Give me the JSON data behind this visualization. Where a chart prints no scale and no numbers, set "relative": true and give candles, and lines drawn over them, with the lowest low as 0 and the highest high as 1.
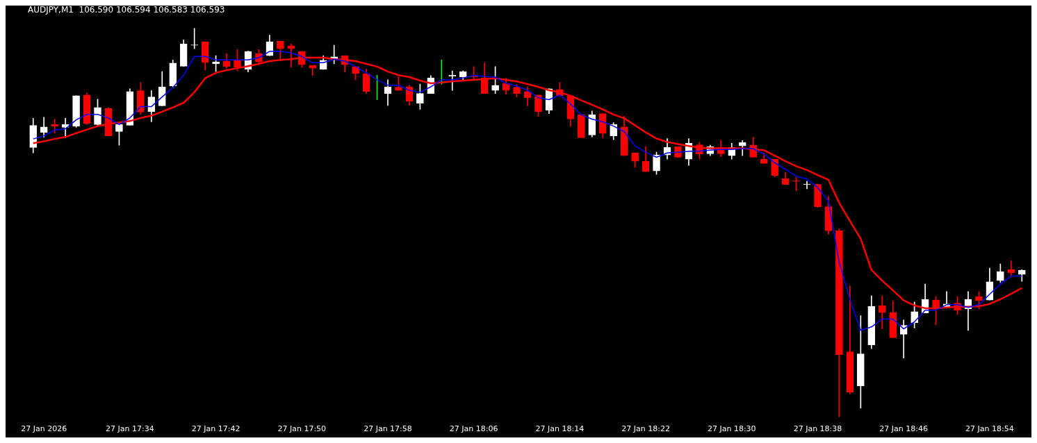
{
  "chart_data": {
    "type": "candlestick",
    "title": "AUDJPY,M1  106.590 106.594 106.583 106.593",
    "relative": true,
    "tick_labels": "x",
    "categories": [
      null,
      "27 Jan 2026",
      null,
      null,
      null,
      null,
      null,
      null,
      null,
      "27 Jan 17:34",
      null,
      null,
      null,
      null,
      null,
      null,
      null,
      "27 Jan 17:42",
      null,
      null,
      null,
      null,
      null,
      null,
      null,
      "27 Jan 17:50",
      null,
      null,
      null,
      null,
      null,
      null,
      null,
      "27 Jan 17:58",
      null,
      null,
      null,
      null,
      null,
      null,
      null,
      "27 Jan 18:06",
      null,
      null,
      null,
      null,
      null,
      null,
      null,
      "27 Jan 18:14",
      null,
      null,
      null,
      null,
      null,
      null,
      null,
      "27 Jan 18:22",
      null,
      null,
      null,
      null,
      null,
      null,
      null,
      "27 Jan 18:30",
      null,
      null,
      null,
      null,
      null,
      null,
      null,
      "27 Jan 18:38",
      null,
      null,
      null,
      null,
      null,
      null,
      null,
      "27 Jan 18:46",
      null,
      null,
      null,
      null,
      null,
      null,
      null,
      "27 Jan 18:54",
      null,
      null,
      null
    ],
    "ohlc": [
      [
        0.693,
        0.768,
        0.679,
        0.75
      ],
      [
        0.732,
        0.771,
        0.72,
        0.746
      ],
      [
        0.752,
        0.766,
        0.73,
        0.748
      ],
      [
        0.745,
        0.768,
        0.718,
        0.752
      ],
      [
        0.748,
        0.826,
        0.745,
        0.826
      ],
      [
        0.828,
        0.833,
        0.752,
        0.755
      ],
      [
        0.752,
        0.817,
        0.75,
        0.796
      ],
      [
        0.793,
        0.796,
        0.723,
        0.723
      ],
      [
        0.734,
        0.755,
        0.699,
        0.752
      ],
      [
        0.75,
        0.844,
        0.75,
        0.837
      ],
      [
        0.839,
        0.86,
        0.778,
        0.784
      ],
      [
        0.785,
        0.839,
        0.759,
        0.823
      ],
      [
        0.8,
        0.888,
        0.8,
        0.849
      ],
      [
        0.851,
        0.918,
        0.847,
        0.91
      ],
      [
        0.902,
        0.97,
        0.902,
        0.959
      ],
      [
        0.956,
        1,
        0.947,
        0.957
      ],
      [
        0.965,
        0.965,
        0.892,
        0.911
      ],
      [
        0.908,
        0.929,
        0.888,
        0.913
      ],
      [
        0.915,
        0.934,
        0.897,
        0.901
      ],
      [
        0.917,
        0.945,
        0.89,
        0.899
      ],
      [
        0.894,
        0.941,
        0.887,
        0.94
      ],
      [
        0.934,
        0.945,
        0.906,
        0.913
      ],
      [
        0.929,
        0.982,
        0.929,
        0.965
      ],
      [
        0.966,
        0.966,
        0.915,
        0.947
      ],
      [
        0.954,
        0.959,
        0.899,
        0.947
      ],
      [
        0.94,
        0.94,
        0.899,
        0.906
      ],
      [
        0.904,
        0.904,
        0.878,
        0.897
      ],
      [
        0.894,
        0.929,
        0.894,
        0.917
      ],
      [
        0.92,
        0.956,
        0.908,
        0.926
      ],
      [
        0.929,
        0.929,
        0.887,
        0.906
      ],
      [
        0.901,
        0.901,
        0.867,
        0.883
      ],
      [
        0.883,
        0.895,
        0.832,
        0.837
      ],
      [
        0.837,
        0.879,
        0.816,
        0.837
      ],
      [
        0.832,
        0.867,
        0.801,
        0.849
      ],
      [
        0.848,
        0.876,
        0.84,
        0.84
      ],
      [
        0.849,
        0.853,
        0.801,
        0.812
      ],
      [
        0.807,
        0.856,
        0.791,
        0.832
      ],
      [
        0.832,
        0.878,
        0.832,
        0.872
      ],
      [
        0.879,
        0.918,
        0.856,
        0.879
      ],
      [
        0.876,
        0.89,
        0.84,
        0.879
      ],
      [
        0.874,
        0.89,
        0.865,
        0.888
      ],
      [
        0.876,
        0.901,
        0.865,
        0.874
      ],
      [
        0.872,
        0.91,
        0.832,
        0.832
      ],
      [
        0.84,
        0.901,
        0.832,
        0.853
      ],
      [
        0.858,
        0.871,
        0.83,
        0.84
      ],
      [
        0.848,
        0.855,
        0.823,
        0.832
      ],
      [
        0.837,
        0.849,
        0.8,
        0.821
      ],
      [
        0.828,
        0.828,
        0.773,
        0.785
      ],
      [
        0.789,
        0.844,
        0.78,
        0.844
      ],
      [
        0.842,
        0.86,
        0.826,
        0.826
      ],
      [
        0.826,
        0.826,
        0.748,
        0.766
      ],
      [
        0.777,
        0.777,
        0.718,
        0.718
      ],
      [
        0.725,
        0.787,
        0.72,
        0.777
      ],
      [
        0.78,
        0.78,
        0.718,
        0.729
      ],
      [
        0.723,
        0.757,
        0.713,
        0.752
      ],
      [
        0.746,
        0.773,
        0.672,
        0.672
      ],
      [
        0.679,
        0.679,
        0.642,
        0.658
      ],
      [
        0.658,
        0.695,
        0.631,
        0.631
      ],
      [
        0.633,
        0.681,
        0.624,
        0.674
      ],
      [
        0.674,
        0.716,
        0.663,
        0.693
      ],
      [
        0.695,
        0.695,
        0.667,
        0.668
      ],
      [
        0.663,
        0.716,
        0.647,
        0.704
      ],
      [
        0.7,
        0.706,
        0.663,
        0.676
      ],
      [
        0.677,
        0.699,
        0.672,
        0.695
      ],
      [
        0.693,
        0.711,
        0.67,
        0.677
      ],
      [
        0.672,
        0.704,
        0.663,
        0.693
      ],
      [
        0.697,
        0.711,
        0.672,
        0.706
      ],
      [
        0.699,
        0.72,
        0.668,
        0.668
      ],
      [
        0.663,
        0.679,
        0.652,
        0.652
      ],
      [
        0.663,
        0.663,
        0.617,
        0.621
      ],
      [
        0.613,
        0.629,
        0.598,
        0.598
      ],
      [
        0.608,
        0.617,
        0.582,
        0.606
      ],
      [
        0.598,
        0.606,
        0.587,
        0.599
      ],
      [
        0.598,
        0.599,
        0.539,
        0.541
      ],
      [
        0.541,
        0.567,
        0.47,
        0.479
      ],
      [
        0.479,
        0.484,
        0,
        0.161
      ],
      [
        0.168,
        0.337,
        0.06,
        0.064
      ],
      [
        0.08,
        0.261,
        0.023,
        0.163
      ],
      [
        0.186,
        0.312,
        0.176,
        0.285
      ],
      [
        0.287,
        0.312,
        0.227,
        0.269
      ],
      [
        0.269,
        0.298,
        0.204,
        0.204
      ],
      [
        0.213,
        0.25,
        0.152,
        0.236
      ],
      [
        0.243,
        0.296,
        0.229,
        0.271
      ],
      [
        0.268,
        0.342,
        0.268,
        0.303
      ],
      [
        0.301,
        0.31,
        0.238,
        0.278
      ],
      [
        0.282,
        0.323,
        0.282,
        0.291
      ],
      [
        0.293,
        0.31,
        0.264,
        0.275
      ],
      [
        0.278,
        0.323,
        0.223,
        0.303
      ],
      [
        0.31,
        0.323,
        0.278,
        0.3
      ],
      [
        0.301,
        0.383,
        0.301,
        0.348
      ],
      [
        0.351,
        0.394,
        0.346,
        0.374
      ],
      [
        0.379,
        0.402,
        0.362,
        0.371
      ],
      [
        0.367,
        0.379,
        0.349,
        0.378
      ]
    ],
    "colors": [
      "#ffffff",
      "#ffffff",
      "#ff0000",
      "#ffffff",
      "#ffffff",
      "#ff0000",
      "#ffffff",
      "#ff0000",
      "#ffffff",
      "#ffffff",
      "#ff0000",
      "#ffffff",
      "#ffffff",
      "#ffffff",
      "#ffffff",
      "#ffffff",
      "#ff0000",
      "#ffffff",
      "#ff0000",
      "#ff0000",
      "#ffffff",
      "#ff0000",
      "#ffffff",
      "#ff0000",
      "#ff0000",
      "#ff0000",
      "#ff0000",
      "#ffffff",
      "#ffffff",
      "#ff0000",
      "#ff0000",
      "#ff0000",
      "#00ff00",
      "#ffffff",
      "#ff0000",
      "#ff0000",
      "#ffffff",
      "#ffffff",
      "#00ff00",
      "#ffffff",
      "#ffffff",
      "#ff0000",
      "#ff0000",
      "#ffffff",
      "#ff0000",
      "#ff0000",
      "#ff0000",
      "#ff0000",
      "#ffffff",
      "#ff0000",
      "#ff0000",
      "#ff0000",
      "#ffffff",
      "#ff0000",
      "#ffffff",
      "#ff0000",
      "#ff0000",
      "#ff0000",
      "#ffffff",
      "#ffffff",
      "#ff0000",
      "#ffffff",
      "#ff0000",
      "#ffffff",
      "#ff0000",
      "#ffffff",
      "#ffffff",
      "#ff0000",
      "#ff0000",
      "#ff0000",
      "#ff0000",
      "#ff0000",
      "#ffffff",
      "#ff0000",
      "#ff0000",
      "#ff0000",
      "#ff0000",
      "#ffffff",
      "#ffffff",
      "#ff0000",
      "#ff0000",
      "#ffffff",
      "#ffffff",
      "#ffffff",
      "#ff0000",
      "#ffffff",
      "#ff0000",
      "#ffffff",
      "#ff0000",
      "#ffffff",
      "#ffffff",
      "#ff0000",
      "#ffffff"
    ],
    "series": [
      {
        "type": "line",
        "color": "#0000ff",
        "values": [
          0.715,
          0.723,
          0.738,
          0.741,
          0.764,
          0.778,
          0.778,
          0.769,
          0.752,
          0.769,
          0.798,
          0.798,
          0.823,
          0.847,
          0.879,
          0.927,
          0.927,
          0.918,
          0.918,
          0.918,
          0.918,
          0.924,
          0.94,
          0.94,
          0.936,
          0.927,
          0.911,
          0.911,
          0.92,
          0.915,
          0.901,
          0.885,
          0.867,
          0.853,
          0.853,
          0.84,
          0.835,
          0.849,
          0.867,
          0.867,
          0.872,
          0.878,
          0.876,
          0.874,
          0.858,
          0.851,
          0.84,
          0.821,
          0.816,
          0.828,
          0.805,
          0.777,
          0.766,
          0.759,
          0.748,
          0.734,
          0.697,
          0.681,
          0.668,
          0.679,
          0.681,
          0.683,
          0.684,
          0.686,
          0.688,
          0.688,
          0.69,
          0.69,
          0.676,
          0.654,
          0.637,
          0.619,
          0.612,
          0.59,
          0.555,
          0.397,
          0.303,
          0.223,
          0.232,
          0.252,
          0.252,
          0.227,
          0.245,
          0.275,
          0.275,
          0.289,
          0.289,
          0.282,
          0.289,
          0.316,
          0.342,
          0.363,
          0.363
        ]
      },
      {
        "type": "line",
        "color": "#ff0000",
        "values": [
          0.704,
          0.709,
          0.715,
          0.72,
          0.73,
          0.739,
          0.748,
          0.754,
          0.757,
          0.761,
          0.769,
          0.775,
          0.785,
          0.796,
          0.808,
          0.835,
          0.871,
          0.885,
          0.892,
          0.897,
          0.902,
          0.908,
          0.915,
          0.918,
          0.92,
          0.924,
          0.924,
          0.924,
          0.92,
          0.918,
          0.915,
          0.908,
          0.901,
          0.888,
          0.879,
          0.874,
          0.865,
          0.858,
          0.86,
          0.863,
          0.865,
          0.867,
          0.869,
          0.871,
          0.867,
          0.863,
          0.856,
          0.849,
          0.84,
          0.835,
          0.826,
          0.814,
          0.803,
          0.791,
          0.778,
          0.768,
          0.75,
          0.732,
          0.716,
          0.707,
          0.702,
          0.697,
          0.693,
          0.691,
          0.691,
          0.691,
          0.691,
          0.688,
          0.686,
          0.672,
          0.658,
          0.645,
          0.635,
          0.622,
          0.61,
          0.551,
          0.504,
          0.459,
          0.378,
          0.351,
          0.326,
          0.3,
          0.287,
          0.28,
          0.28,
          0.282,
          0.284,
          0.284,
          0.285,
          0.291,
          0.303,
          0.317,
          0.332
        ]
      }
    ]
  }
}
